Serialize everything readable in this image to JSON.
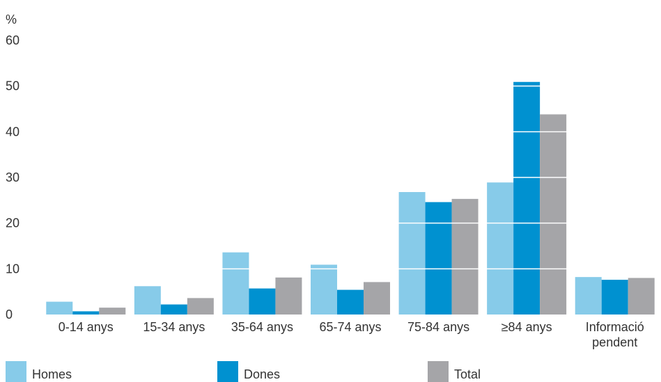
{
  "chart_data": {
    "type": "bar",
    "ylabel": "%",
    "ylim": [
      0,
      60
    ],
    "yticks": [
      0,
      10,
      20,
      30,
      40,
      50,
      60
    ],
    "categories": [
      [
        "0-14 anys"
      ],
      [
        "15-34 anys"
      ],
      [
        "35-64 anys"
      ],
      [
        "65-74 anys"
      ],
      [
        "75-84 anys"
      ],
      [
        "≥84 anys"
      ],
      [
        "Informació",
        "pendent"
      ]
    ],
    "series": [
      {
        "name": "Homes",
        "color": "#87cbe9",
        "values": [
          2.8,
          6.2,
          13.6,
          10.9,
          26.8,
          28.9,
          8.2
        ]
      },
      {
        "name": "Dones",
        "color": "#0091d0",
        "values": [
          0.7,
          2.2,
          5.7,
          5.4,
          24.6,
          50.9,
          7.6
        ]
      },
      {
        "name": "Total",
        "color": "#a5a5a8",
        "values": [
          1.5,
          3.6,
          8.1,
          7.1,
          25.3,
          43.8,
          8.0
        ]
      }
    ],
    "grid": "white lines over bars",
    "legend": "bottom"
  }
}
